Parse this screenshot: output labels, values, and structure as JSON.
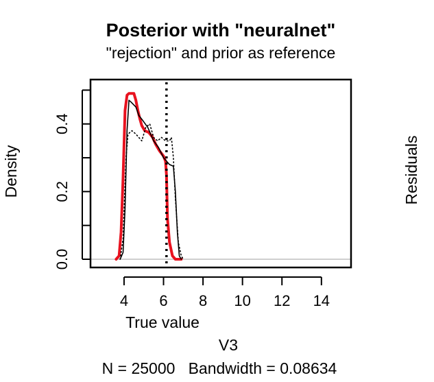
{
  "chart_data": {
    "type": "line",
    "title": "Posterior with \"neuralnet\"",
    "subtitle": "\"rejection\" and prior as reference",
    "ylabel": "Density",
    "xlabel": "True value",
    "xlabel2": "V3",
    "footer": "N = 25000   Bandwidth = 0.08634",
    "right_label": "Residuals",
    "xlim": [
      2.3,
      15.5
    ],
    "ylim": [
      0,
      0.5
    ],
    "x_ticks": [
      4,
      6,
      8,
      10,
      12,
      14
    ],
    "y_ticks": [
      0.0,
      0.1,
      0.2,
      0.3,
      0.4,
      0.5
    ],
    "y_tick_labels": [
      "0.0",
      "0.2",
      "0.4"
    ],
    "y_tick_label_values": [
      0.0,
      0.2,
      0.4
    ],
    "true_value": 6.15,
    "grid": false,
    "series": [
      {
        "color": "#e8121f",
        "style": "solid",
        "width": "thick",
        "x": [
          3.6,
          3.75,
          3.85,
          3.95,
          4.05,
          4.15,
          4.25,
          4.35,
          4.5,
          4.6,
          4.7,
          4.8,
          4.9,
          5.05,
          5.25,
          5.45,
          5.6,
          5.8,
          6.0,
          6.1,
          6.15,
          6.2,
          6.3,
          6.45,
          6.6,
          6.75,
          6.9
        ],
        "y": [
          0.0,
          0.01,
          0.08,
          0.24,
          0.44,
          0.485,
          0.49,
          0.49,
          0.49,
          0.47,
          0.44,
          0.415,
          0.395,
          0.38,
          0.375,
          0.36,
          0.34,
          0.32,
          0.305,
          0.29,
          0.25,
          0.12,
          0.05,
          0.01,
          0.0,
          0.0,
          0.0
        ]
      },
      {
        "color": "#000000",
        "style": "solid",
        "width": "thin",
        "x": [
          3.8,
          3.95,
          4.05,
          4.15,
          4.25,
          4.35,
          4.6,
          4.75,
          4.95,
          5.2,
          5.5,
          5.75,
          6.0,
          6.3,
          6.5,
          6.6,
          6.7,
          6.8,
          6.9
        ],
        "y": [
          0.0,
          0.02,
          0.15,
          0.38,
          0.47,
          0.465,
          0.45,
          0.425,
          0.41,
          0.39,
          0.35,
          0.33,
          0.3,
          0.28,
          0.275,
          0.2,
          0.08,
          0.01,
          0.0
        ]
      },
      {
        "color": "#000000",
        "style": "dotted",
        "width": "thin",
        "x": [
          3.8,
          3.95,
          4.1,
          4.2,
          4.4,
          4.6,
          4.9,
          5.1,
          5.3,
          5.5,
          5.7,
          5.9,
          6.1,
          6.3,
          6.4,
          6.5,
          6.6,
          6.75,
          6.9,
          7.0
        ],
        "y": [
          0.0,
          0.06,
          0.3,
          0.37,
          0.38,
          0.37,
          0.35,
          0.39,
          0.4,
          0.36,
          0.35,
          0.36,
          0.35,
          0.35,
          0.36,
          0.3,
          0.18,
          0.05,
          0.01,
          0.0
        ]
      }
    ]
  }
}
